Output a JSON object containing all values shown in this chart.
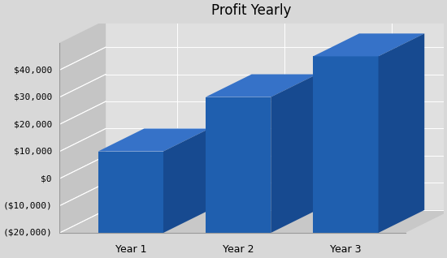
{
  "title": "Profit Yearly",
  "categories": [
    "Year 1",
    "Year 2",
    "Year 3"
  ],
  "values": [
    10000,
    30000,
    45000
  ],
  "bar_front_color": "#1f5faf",
  "bar_top_color": "#3672c8",
  "bar_side_color": "#174a90",
  "bg_color": "#d8d8d8",
  "wall_left_color": "#c5c5c5",
  "wall_back_color": "#dcdcdc",
  "floor_color": "#c8c8c8",
  "grid_color": "#ffffff",
  "ymin": -20000,
  "ymax": 50000,
  "yticks": [
    -20000,
    -10000,
    0,
    10000,
    20000,
    30000,
    40000
  ],
  "title_fontsize": 12,
  "tick_fontsize": 8,
  "cat_fontsize": 9
}
